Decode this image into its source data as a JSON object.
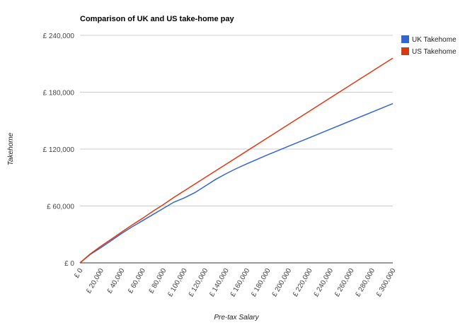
{
  "chart_data": {
    "type": "line",
    "title": "Comparison of UK and US take-home pay",
    "xlabel": "Pre-tax Salary",
    "ylabel": "Takehome",
    "x": [
      0,
      10000,
      20000,
      30000,
      40000,
      50000,
      60000,
      70000,
      80000,
      90000,
      100000,
      110000,
      120000,
      130000,
      140000,
      150000,
      160000,
      180000,
      200000,
      220000,
      240000,
      260000,
      280000,
      300000
    ],
    "x_ticks": [
      0,
      20000,
      40000,
      60000,
      80000,
      100000,
      120000,
      140000,
      160000,
      180000,
      200000,
      220000,
      240000,
      260000,
      280000,
      300000
    ],
    "x_tick_labels": [
      "£ 0",
      "£ 20,000",
      "£ 40,000",
      "£ 60,000",
      "£ 80,000",
      "£ 100,000",
      "£ 120,000",
      "£ 140,000",
      "£ 160,000",
      "£ 180,000",
      "£ 200,000",
      "£ 220,000",
      "£ 240,000",
      "£ 260,000",
      "£ 280,000",
      "£ 300,000"
    ],
    "xlim": [
      0,
      300000
    ],
    "y_ticks": [
      0,
      60000,
      120000,
      180000,
      240000
    ],
    "y_tick_labels": [
      "£ 0",
      "£ 60,000",
      "£ 120,000",
      "£ 180,000",
      "£ 240,000"
    ],
    "ylim": [
      0,
      240000
    ],
    "grid": true,
    "legend_position": "right",
    "series": [
      {
        "name": "UK Takehome",
        "color": "#3366cc",
        "values": [
          0,
          9000,
          16000,
          23500,
          31000,
          38000,
          44500,
          51000,
          57500,
          64000,
          68500,
          74000,
          81000,
          88000,
          94000,
          99500,
          104500,
          114000,
          123000,
          132000,
          141000,
          150000,
          159000,
          168000
        ]
      },
      {
        "name": "US Takehome",
        "color": "#dc3912",
        "values": [
          0,
          9500,
          17500,
          25000,
          32500,
          40000,
          47000,
          54500,
          61500,
          69000,
          76000,
          83000,
          90000,
          97000,
          104000,
          111000,
          118000,
          132000,
          146000,
          160000,
          174000,
          188000,
          202000,
          216000
        ]
      }
    ]
  }
}
